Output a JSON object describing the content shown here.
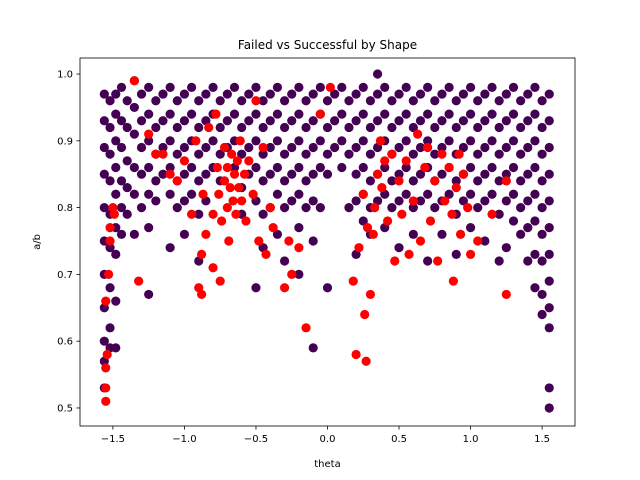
{
  "chart_data": {
    "type": "scatter",
    "title": "Failed vs Successful by Shape",
    "xlabel": "theta",
    "ylabel": "a/b",
    "xlim": [
      -1.73,
      1.73
    ],
    "ylim": [
      0.473,
      1.024
    ],
    "xticks": [
      -1.5,
      -1.0,
      -0.5,
      0.0,
      0.5,
      1.0,
      1.5
    ],
    "xtick_labels": [
      "−1.5",
      "−1.0",
      "−0.5",
      "0.0",
      "0.5",
      "1.0",
      "1.5"
    ],
    "yticks": [
      0.5,
      0.6,
      0.7,
      0.8,
      0.9,
      1.0
    ],
    "ytick_labels": [
      "0.5",
      "0.6",
      "0.7",
      "0.8",
      "0.9",
      "1.0"
    ],
    "grid": false,
    "series": [
      {
        "name": "successful",
        "color": "#440154",
        "columns": [
          {
            "x": -1.56,
            "y": [
              0.97,
              0.93,
              0.89,
              0.85,
              0.8,
              0.75,
              0.7,
              0.65,
              0.6,
              0.57,
              0.53
            ]
          },
          {
            "x": -1.52,
            "y": [
              0.96,
              0.92,
              0.88,
              0.84,
              0.79,
              0.74,
              0.68,
              0.62,
              0.59
            ]
          },
          {
            "x": -1.48,
            "y": [
              0.97,
              0.94,
              0.9,
              0.86,
              0.82,
              0.77,
              0.73,
              0.66,
              0.59
            ]
          },
          {
            "x": -1.44,
            "y": [
              0.98,
              0.93,
              0.89,
              0.84,
              0.8,
              0.76
            ]
          },
          {
            "x": -1.4,
            "y": [
              0.96,
              0.92,
              0.87,
              0.83,
              0.79
            ]
          },
          {
            "x": -1.35,
            "y": [
              0.99,
              0.95,
              0.91,
              0.86,
              0.82,
              0.76
            ]
          },
          {
            "x": -1.3,
            "y": [
              0.97,
              0.93,
              0.89,
              0.85,
              0.8
            ]
          },
          {
            "x": -1.25,
            "y": [
              0.98,
              0.94,
              0.9,
              0.86,
              0.82,
              0.77,
              0.67
            ]
          },
          {
            "x": -1.2,
            "y": [
              0.96,
              0.92,
              0.88,
              0.84,
              0.81
            ]
          },
          {
            "x": -1.15,
            "y": [
              0.97,
              0.93,
              0.89,
              0.85
            ]
          },
          {
            "x": -1.1,
            "y": [
              0.98,
              0.94,
              0.9,
              0.86,
              0.82,
              0.74
            ]
          },
          {
            "x": -1.05,
            "y": [
              0.96,
              0.92,
              0.88,
              0.84,
              0.8
            ]
          },
          {
            "x": -1.0,
            "y": [
              0.97,
              0.93,
              0.89,
              0.85,
              0.81,
              0.76
            ]
          },
          {
            "x": -0.95,
            "y": [
              0.98,
              0.94,
              0.9,
              0.86,
              0.82
            ]
          },
          {
            "x": -0.9,
            "y": [
              0.96,
              0.92,
              0.88,
              0.84,
              0.79,
              0.72
            ]
          },
          {
            "x": -0.85,
            "y": [
              0.97,
              0.93,
              0.89,
              0.85,
              0.81
            ]
          },
          {
            "x": -0.8,
            "y": [
              0.98,
              0.94,
              0.9,
              0.86
            ]
          },
          {
            "x": -0.75,
            "y": [
              0.96,
              0.92,
              0.88,
              0.84
            ]
          },
          {
            "x": -0.7,
            "y": [
              0.97,
              0.93,
              0.89
            ]
          },
          {
            "x": -0.65,
            "y": [
              0.98,
              0.94,
              0.9,
              0.86
            ]
          },
          {
            "x": -0.6,
            "y": [
              0.96,
              0.92,
              0.88,
              0.83,
              0.79
            ]
          },
          {
            "x": -0.55,
            "y": [
              0.97,
              0.93,
              0.89,
              0.85
            ]
          },
          {
            "x": -0.5,
            "y": [
              0.98,
              0.94,
              0.9,
              0.86,
              0.81,
              0.68
            ]
          },
          {
            "x": -0.45,
            "y": [
              0.96,
              0.92,
              0.88,
              0.84,
              0.79,
              0.74
            ]
          },
          {
            "x": -0.4,
            "y": [
              0.97,
              0.93,
              0.89,
              0.85,
              0.8
            ]
          },
          {
            "x": -0.35,
            "y": [
              0.98,
              0.94,
              0.9,
              0.86,
              0.82,
              0.76
            ]
          },
          {
            "x": -0.3,
            "y": [
              0.96,
              0.92,
              0.88,
              0.84,
              0.8,
              0.72
            ]
          },
          {
            "x": -0.25,
            "y": [
              0.97,
              0.93,
              0.89,
              0.85,
              0.81
            ]
          },
          {
            "x": -0.2,
            "y": [
              0.98,
              0.94,
              0.9,
              0.86,
              0.82,
              0.77,
              0.7
            ]
          },
          {
            "x": -0.15,
            "y": [
              0.96,
              0.92,
              0.88,
              0.84,
              0.8
            ]
          },
          {
            "x": -0.1,
            "y": [
              0.97,
              0.93,
              0.89,
              0.85,
              0.81,
              0.75,
              0.59
            ]
          },
          {
            "x": -0.05,
            "y": [
              0.98,
              0.94,
              0.9,
              0.86,
              0.8
            ]
          },
          {
            "x": 0.0,
            "y": [
              0.96,
              0.92,
              0.88,
              0.85,
              0.68
            ]
          },
          {
            "x": 0.05,
            "y": [
              0.97,
              0.93,
              0.89
            ]
          },
          {
            "x": 0.1,
            "y": [
              0.98,
              0.94,
              0.9,
              0.86
            ]
          },
          {
            "x": 0.15,
            "y": [
              0.96,
              0.92,
              0.88,
              0.8
            ]
          },
          {
            "x": 0.2,
            "y": [
              0.97,
              0.93,
              0.89,
              0.85,
              0.81,
              0.73
            ]
          },
          {
            "x": 0.25,
            "y": [
              0.98,
              0.94,
              0.9,
              0.86,
              0.82,
              0.78
            ]
          },
          {
            "x": 0.3,
            "y": [
              0.96,
              0.92,
              0.88,
              0.84,
              0.8,
              0.76
            ]
          },
          {
            "x": 0.35,
            "y": [
              1.0,
              0.97,
              0.93,
              0.89,
              0.85,
              0.81
            ]
          },
          {
            "x": 0.4,
            "y": [
              0.98,
              0.94,
              0.9,
              0.86,
              0.82,
              0.77
            ]
          },
          {
            "x": 0.45,
            "y": [
              0.96,
              0.92,
              0.88,
              0.84,
              0.8
            ]
          },
          {
            "x": 0.5,
            "y": [
              0.97,
              0.93,
              0.89,
              0.85,
              0.81,
              0.74
            ]
          },
          {
            "x": 0.55,
            "y": [
              0.98,
              0.94,
              0.9,
              0.86,
              0.82
            ]
          },
          {
            "x": 0.6,
            "y": [
              0.96,
              0.92,
              0.88,
              0.84,
              0.8,
              0.76
            ]
          },
          {
            "x": 0.65,
            "y": [
              0.97,
              0.93,
              0.89,
              0.85,
              0.81
            ]
          },
          {
            "x": 0.7,
            "y": [
              0.98,
              0.94,
              0.9,
              0.86,
              0.82,
              0.72
            ]
          },
          {
            "x": 0.75,
            "y": [
              0.96,
              0.92,
              0.88,
              0.84,
              0.8
            ]
          },
          {
            "x": 0.8,
            "y": [
              0.97,
              0.93,
              0.89,
              0.85,
              0.81,
              0.76
            ]
          },
          {
            "x": 0.85,
            "y": [
              0.98,
              0.94,
              0.9,
              0.86,
              0.82
            ]
          },
          {
            "x": 0.9,
            "y": [
              0.96,
              0.92,
              0.88,
              0.84,
              0.79,
              0.73
            ]
          },
          {
            "x": 0.95,
            "y": [
              0.97,
              0.93,
              0.89,
              0.85,
              0.81
            ]
          },
          {
            "x": 1.0,
            "y": [
              0.98,
              0.94,
              0.9,
              0.86,
              0.82,
              0.77
            ]
          },
          {
            "x": 1.05,
            "y": [
              0.96,
              0.92,
              0.88,
              0.84,
              0.8
            ]
          },
          {
            "x": 1.1,
            "y": [
              0.97,
              0.93,
              0.89,
              0.85,
              0.81,
              0.75
            ]
          },
          {
            "x": 1.15,
            "y": [
              0.98,
              0.94,
              0.9,
              0.86,
              0.82
            ]
          },
          {
            "x": 1.2,
            "y": [
              0.96,
              0.92,
              0.88,
              0.84,
              0.79,
              0.72
            ]
          },
          {
            "x": 1.25,
            "y": [
              0.97,
              0.93,
              0.89,
              0.85,
              0.81,
              0.74
            ]
          },
          {
            "x": 1.3,
            "y": [
              0.98,
              0.94,
              0.9,
              0.86,
              0.82,
              0.78
            ]
          },
          {
            "x": 1.35,
            "y": [
              0.96,
              0.92,
              0.88,
              0.84,
              0.8,
              0.76
            ]
          },
          {
            "x": 1.4,
            "y": [
              0.97,
              0.93,
              0.89,
              0.85,
              0.81,
              0.77,
              0.72
            ]
          },
          {
            "x": 1.45,
            "y": [
              0.98,
              0.94,
              0.9,
              0.86,
              0.82,
              0.78,
              0.73,
              0.68
            ]
          },
          {
            "x": 1.5,
            "y": [
              0.96,
              0.92,
              0.88,
              0.84,
              0.8,
              0.76,
              0.72,
              0.67,
              0.64
            ]
          },
          {
            "x": 1.55,
            "y": [
              0.97,
              0.93,
              0.89,
              0.85,
              0.81,
              0.77,
              0.73,
              0.69,
              0.65,
              0.62,
              0.53,
              0.5
            ]
          }
        ]
      },
      {
        "name": "failed",
        "color": "#ff0000",
        "points": [
          [
            -1.55,
            0.51
          ],
          [
            -1.55,
            0.53
          ],
          [
            -1.55,
            0.56
          ],
          [
            -1.54,
            0.58
          ],
          [
            -1.55,
            0.66
          ],
          [
            -1.53,
            0.7
          ],
          [
            -1.52,
            0.75
          ],
          [
            -1.52,
            0.77
          ],
          [
            -1.5,
            0.8
          ],
          [
            -1.49,
            0.79
          ],
          [
            -1.35,
            0.99
          ],
          [
            -1.32,
            0.69
          ],
          [
            -1.25,
            0.91
          ],
          [
            -1.2,
            0.88
          ],
          [
            -1.15,
            0.88
          ],
          [
            -1.1,
            0.85
          ],
          [
            -1.05,
            0.84
          ],
          [
            -1.0,
            0.87
          ],
          [
            -0.95,
            0.79
          ],
          [
            -0.92,
            0.9
          ],
          [
            -0.9,
            0.68
          ],
          [
            -0.88,
            0.67
          ],
          [
            -0.88,
            0.73
          ],
          [
            -0.87,
            0.82
          ],
          [
            -0.85,
            0.76
          ],
          [
            -0.83,
            0.92
          ],
          [
            -0.8,
            0.71
          ],
          [
            -0.8,
            0.79
          ],
          [
            -0.78,
            0.94
          ],
          [
            -0.77,
            0.86
          ],
          [
            -0.76,
            0.82
          ],
          [
            -0.75,
            0.69
          ],
          [
            -0.74,
            0.78
          ],
          [
            -0.72,
            0.89
          ],
          [
            -0.72,
            0.84
          ],
          [
            -0.7,
            0.8
          ],
          [
            -0.7,
            0.86
          ],
          [
            -0.69,
            0.75
          ],
          [
            -0.68,
            0.83
          ],
          [
            -0.67,
            0.88
          ],
          [
            -0.66,
            0.81
          ],
          [
            -0.65,
            0.85
          ],
          [
            -0.64,
            0.79
          ],
          [
            -0.63,
            0.87
          ],
          [
            -0.62,
            0.83
          ],
          [
            -0.61,
            0.9
          ],
          [
            -0.6,
            0.81
          ],
          [
            -0.58,
            0.85
          ],
          [
            -0.57,
            0.78
          ],
          [
            -0.55,
            0.87
          ],
          [
            -0.52,
            0.82
          ],
          [
            -0.5,
            0.96
          ],
          [
            -0.48,
            0.75
          ],
          [
            -0.45,
            0.89
          ],
          [
            -0.43,
            0.73
          ],
          [
            -0.4,
            0.8
          ],
          [
            -0.38,
            0.77
          ],
          [
            -0.3,
            0.68
          ],
          [
            -0.27,
            0.75
          ],
          [
            -0.25,
            0.7
          ],
          [
            -0.2,
            0.74
          ],
          [
            -0.15,
            0.62
          ],
          [
            -0.05,
            0.94
          ],
          [
            0.02,
            0.98
          ],
          [
            0.18,
            0.69
          ],
          [
            0.2,
            0.58
          ],
          [
            0.22,
            0.74
          ],
          [
            0.25,
            0.82
          ],
          [
            0.26,
            0.64
          ],
          [
            0.27,
            0.57
          ],
          [
            0.28,
            0.77
          ],
          [
            0.3,
            0.67
          ],
          [
            0.32,
            0.76
          ],
          [
            0.33,
            0.8
          ],
          [
            0.35,
            0.85
          ],
          [
            0.37,
            0.9
          ],
          [
            0.38,
            0.83
          ],
          [
            0.4,
            0.87
          ],
          [
            0.42,
            0.78
          ],
          [
            0.45,
            0.88
          ],
          [
            0.47,
            0.72
          ],
          [
            0.5,
            0.84
          ],
          [
            0.52,
            0.79
          ],
          [
            0.55,
            0.87
          ],
          [
            0.57,
            0.73
          ],
          [
            0.6,
            0.81
          ],
          [
            0.63,
            0.91
          ],
          [
            0.65,
            0.75
          ],
          [
            0.68,
            0.86
          ],
          [
            0.7,
            0.89
          ],
          [
            0.72,
            0.78
          ],
          [
            0.75,
            0.84
          ],
          [
            0.77,
            0.72
          ],
          [
            0.8,
            0.88
          ],
          [
            0.82,
            0.81
          ],
          [
            0.85,
            0.86
          ],
          [
            0.87,
            0.79
          ],
          [
            0.88,
            0.69
          ],
          [
            0.9,
            0.83
          ],
          [
            0.92,
            0.88
          ],
          [
            0.93,
            0.76
          ],
          [
            0.95,
            0.85
          ],
          [
            0.98,
            0.8
          ],
          [
            1.0,
            0.73
          ],
          [
            1.05,
            0.75
          ],
          [
            1.15,
            0.79
          ],
          [
            1.25,
            0.84
          ],
          [
            1.25,
            0.67
          ]
        ]
      }
    ]
  }
}
